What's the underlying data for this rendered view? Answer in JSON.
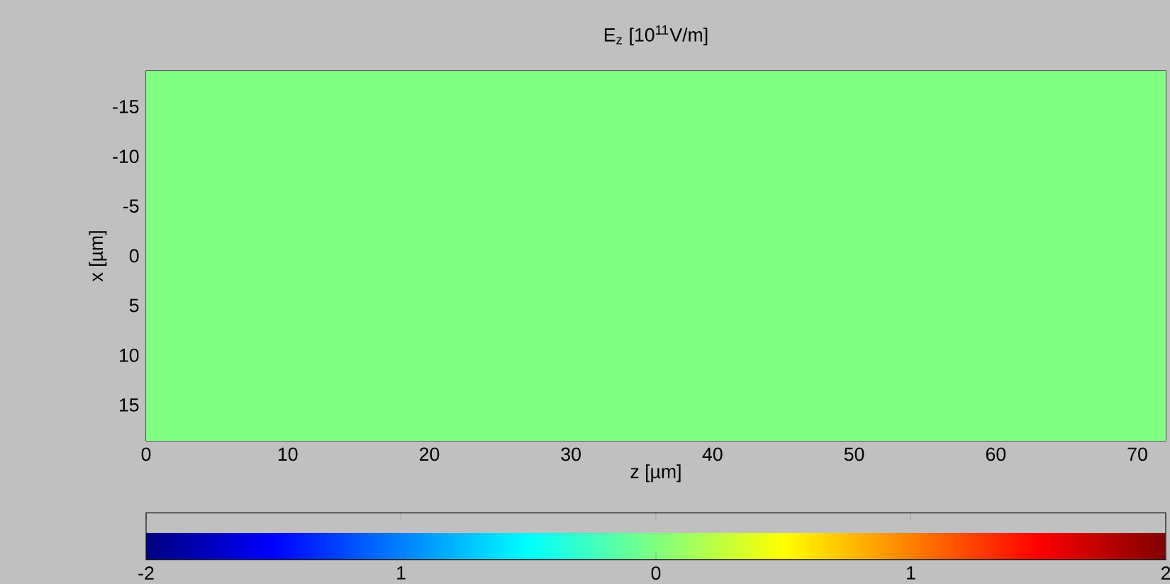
{
  "chart_data": {
    "type": "heatmap",
    "title": "E$_{z}$ [10$^{11}$V/m]",
    "xlabel": "z [µm]",
    "ylabel": "x [µm]",
    "cells": [
      [
        0
      ]
    ],
    "clim": [
      -2,
      2
    ],
    "cticks": [
      -2,
      {
        "value": -1,
        "label": "1"
      },
      0,
      1,
      2
    ],
    "xlim": [
      0,
      72
    ],
    "xticks": [
      0,
      10,
      20,
      30,
      40,
      50,
      60,
      70
    ],
    "ylim": [
      18.6,
      -18.6
    ],
    "yticks": [
      -15,
      -10,
      -5,
      0,
      5,
      10,
      15
    ]
  }
}
